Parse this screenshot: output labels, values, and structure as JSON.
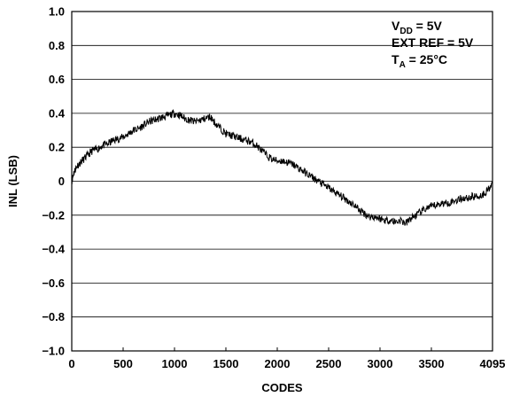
{
  "chart_data": {
    "type": "line",
    "title": "",
    "xlabel": "CODES",
    "ylabel": "INL (LSB)",
    "xlim": [
      0,
      4095
    ],
    "ylim": [
      -1.0,
      1.0
    ],
    "x_ticks": [
      0,
      500,
      1000,
      1500,
      2000,
      2500,
      3000,
      3500,
      4095
    ],
    "x_tick_labels": [
      "0",
      "500",
      "1000",
      "1500",
      "2000",
      "2500",
      "3000",
      "3500",
      "4095"
    ],
    "y_ticks": [
      1.0,
      0.8,
      0.6,
      0.4,
      0.2,
      0,
      -0.2,
      -0.4,
      -0.6,
      -0.8,
      -1.0
    ],
    "y_tick_labels": [
      "1.0",
      "0.8",
      "0.6",
      "0.4",
      "0.2",
      "0",
      "−0.2",
      "−0.4",
      "−0.6",
      "−0.8",
      "−1.0"
    ],
    "grid": "horizontal",
    "conditions": [
      {
        "main": "V",
        "sub": "DD",
        "rest": " = 5V"
      },
      {
        "main": "EXT REF = 5V",
        "sub": "",
        "rest": ""
      },
      {
        "main": "T",
        "sub": "A",
        "rest": " = 25°C"
      }
    ],
    "series": [
      {
        "x": [
          0,
          20,
          50,
          100,
          150,
          200,
          250,
          300,
          350,
          400,
          450,
          500,
          550,
          600,
          650,
          700,
          750,
          800,
          850,
          900,
          950,
          1000,
          1050,
          1100,
          1150,
          1200,
          1250,
          1300,
          1350,
          1400,
          1450,
          1500,
          1550,
          1600,
          1650,
          1700,
          1750,
          1800,
          1850,
          1900,
          1950,
          2000,
          2050,
          2100,
          2150,
          2200,
          2250,
          2300,
          2350,
          2400,
          2450,
          2500,
          2550,
          2600,
          2650,
          2700,
          2750,
          2800,
          2850,
          2900,
          2950,
          3000,
          3050,
          3100,
          3150,
          3200,
          3250,
          3300,
          3350,
          3400,
          3450,
          3500,
          3550,
          3600,
          3650,
          3700,
          3750,
          3800,
          3850,
          3900,
          3950,
          4000,
          4050,
          4095
        ],
        "y": [
          0.0,
          0.05,
          0.09,
          0.12,
          0.15,
          0.18,
          0.19,
          0.21,
          0.22,
          0.24,
          0.25,
          0.26,
          0.28,
          0.3,
          0.31,
          0.33,
          0.35,
          0.36,
          0.37,
          0.38,
          0.39,
          0.4,
          0.39,
          0.37,
          0.36,
          0.35,
          0.36,
          0.37,
          0.38,
          0.34,
          0.31,
          0.28,
          0.27,
          0.26,
          0.25,
          0.24,
          0.23,
          0.21,
          0.18,
          0.15,
          0.13,
          0.12,
          0.12,
          0.11,
          0.1,
          0.08,
          0.06,
          0.04,
          0.02,
          0.0,
          -0.02,
          -0.04,
          -0.06,
          -0.08,
          -0.1,
          -0.12,
          -0.14,
          -0.17,
          -0.19,
          -0.21,
          -0.21,
          -0.22,
          -0.23,
          -0.23,
          -0.24,
          -0.23,
          -0.25,
          -0.22,
          -0.2,
          -0.18,
          -0.16,
          -0.15,
          -0.14,
          -0.13,
          -0.13,
          -0.12,
          -0.11,
          -0.1,
          -0.1,
          -0.09,
          -0.09,
          -0.08,
          -0.05,
          -0.01
        ]
      }
    ]
  }
}
